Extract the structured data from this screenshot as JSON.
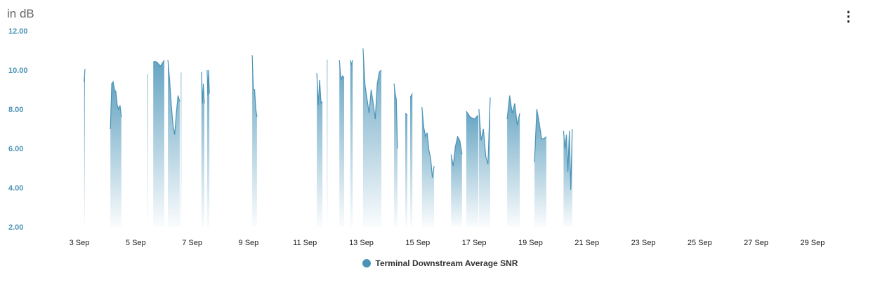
{
  "header": {
    "unit_label": "in dB",
    "menu_icon": "vertical-dots-icon"
  },
  "chart_data": {
    "type": "area",
    "title": "",
    "ylabel": "in dB",
    "ylim": [
      2,
      12
    ],
    "yticks": [
      "12.00",
      "10.00",
      "8.00",
      "6.00",
      "4.00",
      "2.00"
    ],
    "ytick_values": [
      12,
      10,
      8,
      6,
      4,
      2
    ],
    "xlim_days": [
      1.6,
      30.4
    ],
    "xticks": [
      "3 Sep",
      "5 Sep",
      "7 Sep",
      "9 Sep",
      "11 Sep",
      "13 Sep",
      "15 Sep",
      "17 Sep",
      "19 Sep",
      "21 Sep",
      "23 Sep",
      "25 Sep",
      "27 Sep",
      "29 Sep"
    ],
    "xtick_days": [
      3,
      5,
      7,
      9,
      11,
      13,
      15,
      17,
      19,
      21,
      23,
      25,
      27,
      29
    ],
    "legend": {
      "position": "bottom-center",
      "label": "Terminal Downstream Average SNR",
      "color": "#4a93b6"
    },
    "series": [
      {
        "name": "Terminal Downstream Average SNR",
        "segments": [
          {
            "start": 3.17,
            "end": 3.2,
            "values": [
              9.4,
              10.05
            ]
          },
          {
            "start": 4.1,
            "end": 4.49,
            "values": [
              7.0,
              9.3,
              9.4,
              9.0,
              8.9,
              8.2,
              8.0,
              8.2,
              7.6
            ]
          },
          {
            "start": 5.41,
            "end": 5.43,
            "values": [
              9.75,
              9.75
            ]
          },
          {
            "start": 5.62,
            "end": 6.01,
            "values": [
              10.4,
              10.45,
              10.4,
              10.3,
              10.2,
              10.35,
              10.5
            ]
          },
          {
            "start": 6.14,
            "end": 6.56,
            "values": [
              10.5,
              9.5,
              8.2,
              7.2,
              6.7,
              7.8,
              8.7,
              8.4
            ]
          },
          {
            "start": 6.6,
            "end": 6.62,
            "values": [
              9.85,
              9.85
            ]
          },
          {
            "start": 7.33,
            "end": 7.43,
            "values": [
              9.9,
              8.3,
              9.3,
              8.3
            ]
          },
          {
            "start": 7.53,
            "end": 7.61,
            "values": [
              10.0,
              8.7,
              10.0,
              8.8
            ]
          },
          {
            "start": 9.13,
            "end": 9.3,
            "values": [
              10.75,
              9.0,
              9.0,
              8.0,
              7.6
            ]
          },
          {
            "start": 11.42,
            "end": 11.62,
            "values": [
              9.85,
              8.2,
              9.5,
              8.3,
              8.4
            ]
          },
          {
            "start": 11.78,
            "end": 11.8,
            "values": [
              10.5,
              10.5
            ]
          },
          {
            "start": 12.22,
            "end": 12.39,
            "values": [
              10.5,
              9.5,
              9.7,
              9.6
            ]
          },
          {
            "start": 12.61,
            "end": 12.69,
            "values": [
              10.5,
              10.3,
              10.5
            ]
          },
          {
            "start": 13.06,
            "end": 13.71,
            "values": [
              11.1,
              9.2,
              8.5,
              7.8,
              9.0,
              8.3,
              7.5,
              9.3,
              9.9,
              10.0
            ]
          },
          {
            "start": 14.16,
            "end": 14.28,
            "values": [
              9.3,
              8.8,
              8.5,
              6.0
            ]
          },
          {
            "start": 14.56,
            "end": 14.63,
            "values": [
              7.8,
              7.7
            ]
          },
          {
            "start": 14.73,
            "end": 14.81,
            "values": [
              8.6,
              8.8
            ]
          },
          {
            "start": 15.15,
            "end": 15.58,
            "values": [
              8.1,
              7.1,
              6.6,
              6.8,
              5.9,
              5.5,
              4.5,
              5.1
            ]
          },
          {
            "start": 16.18,
            "end": 16.57,
            "values": [
              5.7,
              5.1,
              6.1,
              6.6,
              6.4,
              5.7
            ]
          },
          {
            "start": 16.72,
            "end": 17.15,
            "values": [
              7.9,
              7.6,
              7.5,
              7.7
            ]
          },
          {
            "start": 17.17,
            "end": 17.57,
            "values": [
              8.0,
              6.4,
              7.0,
              5.6,
              5.2,
              8.6
            ]
          },
          {
            "start": 18.17,
            "end": 18.62,
            "values": [
              7.5,
              8.7,
              7.8,
              8.3,
              7.2,
              7.8
            ]
          },
          {
            "start": 19.14,
            "end": 19.56,
            "values": [
              5.3,
              8.0,
              7.3,
              6.5,
              6.5,
              6.6
            ]
          },
          {
            "start": 20.17,
            "end": 20.48,
            "values": [
              6.9,
              6.0,
              6.7,
              4.8,
              6.9,
              3.9,
              7.0
            ]
          }
        ]
      }
    ]
  }
}
